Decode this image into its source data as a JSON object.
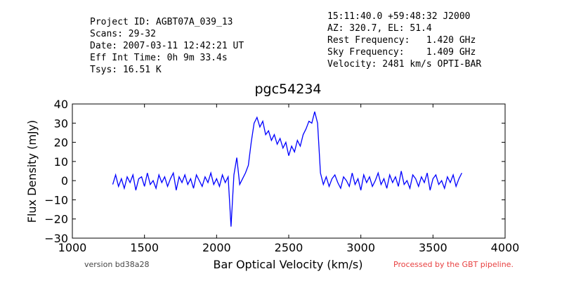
{
  "chart_data": {
    "type": "line",
    "header_left": [
      "Project ID: AGBT07A_039_13",
      "Scans: 29-32",
      "Date: 2007-03-11 12:42:21 UT",
      "Eff Int Time: 0h 9m 33.4s",
      "Tsys: 16.51 K"
    ],
    "header_right": [
      "15:11:40.0 +59:48:32 J2000",
      "AZ: 320.7, EL: 51.4",
      "Rest Frequency:   1.420 GHz",
      "Sky Frequency:    1.409 GHz",
      "Velocity: 2481 km/s OPTI-BAR"
    ],
    "title": "pgc54234",
    "y_label": "Flux Density (mJy)",
    "x_label": "Bar Optical Velocity (km/s)",
    "footer_left": "version bd38a28",
    "footer_right": "Processed by the GBT pipeline.",
    "color": "#0000ff",
    "xlim": [
      1000,
      4000
    ],
    "ylim": [
      -30,
      40
    ],
    "xticks": [
      1000,
      1500,
      2000,
      2500,
      3000,
      3500,
      4000
    ],
    "yticks": [
      {
        "value": -30,
        "label": "−30"
      },
      {
        "value": -20,
        "label": "−20"
      },
      {
        "value": -10,
        "label": "−10"
      },
      0,
      10,
      20,
      30,
      40
    ],
    "x": [
      1280,
      1300,
      1320,
      1340,
      1360,
      1380,
      1400,
      1420,
      1440,
      1460,
      1480,
      1500,
      1520,
      1540,
      1560,
      1580,
      1600,
      1620,
      1640,
      1660,
      1680,
      1700,
      1720,
      1740,
      1760,
      1780,
      1800,
      1820,
      1840,
      1860,
      1880,
      1900,
      1920,
      1940,
      1960,
      1980,
      2000,
      2020,
      2040,
      2060,
      2080,
      2100,
      2120,
      2140,
      2160,
      2180,
      2200,
      2220,
      2240,
      2260,
      2280,
      2300,
      2320,
      2340,
      2360,
      2380,
      2400,
      2420,
      2440,
      2460,
      2480,
      2500,
      2520,
      2540,
      2560,
      2580,
      2600,
      2620,
      2640,
      2660,
      2680,
      2700,
      2720,
      2740,
      2760,
      2780,
      2800,
      2820,
      2840,
      2860,
      2880,
      2900,
      2920,
      2940,
      2960,
      2980,
      3000,
      3020,
      3040,
      3060,
      3080,
      3100,
      3120,
      3140,
      3160,
      3180,
      3200,
      3220,
      3240,
      3260,
      3280,
      3300,
      3320,
      3340,
      3360,
      3380,
      3400,
      3420,
      3440,
      3460,
      3480,
      3500,
      3520,
      3540,
      3560,
      3580,
      3600,
      3620,
      3640,
      3660,
      3680,
      3700
    ],
    "values": [
      -2,
      3,
      -3,
      1,
      -4,
      2,
      -1,
      3,
      -5,
      1,
      2,
      -3,
      4,
      -2,
      0,
      -4,
      3,
      -1,
      2,
      -3,
      1,
      4,
      -5,
      2,
      -1,
      3,
      -2,
      1,
      -4,
      3,
      0,
      -3,
      2,
      -1,
      4,
      -2,
      1,
      -3,
      3,
      -1,
      2,
      -24,
      3,
      12,
      -2,
      1,
      4,
      8,
      20,
      30,
      33,
      28,
      31,
      24,
      26,
      21,
      24,
      19,
      22,
      17,
      20,
      13,
      18,
      15,
      21,
      18,
      24,
      27,
      31,
      30,
      36,
      30,
      4,
      -2,
      2,
      -3,
      1,
      3,
      -1,
      -4,
      2,
      0,
      -3,
      4,
      -2,
      1,
      -5,
      3,
      -1,
      2,
      -3,
      0,
      4,
      -2,
      1,
      -4,
      3,
      -1,
      2,
      -3,
      5,
      -2,
      0,
      -4,
      3,
      1,
      -3,
      2,
      -1,
      4,
      -5,
      1,
      3,
      -2,
      0,
      -4,
      2,
      -1,
      3,
      -3,
      1,
      4
    ]
  }
}
